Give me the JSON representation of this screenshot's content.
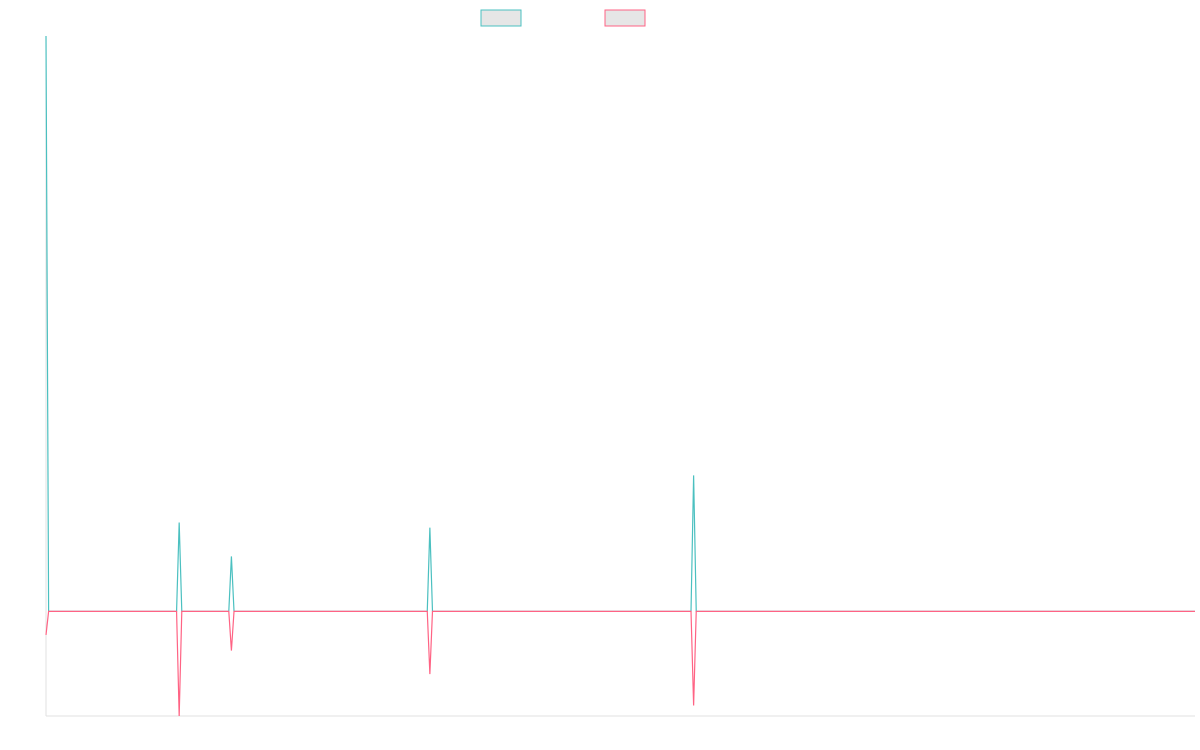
{
  "chart_data": {
    "type": "line",
    "x": [
      0,
      1,
      50,
      51,
      52,
      70,
      71,
      72,
      146,
      147,
      148,
      247,
      248,
      249,
      440
    ],
    "xlim": [
      0,
      440
    ],
    "ylim": [
      -20,
      110
    ],
    "grid": false,
    "legend": "top",
    "series": [
      {
        "color": "#4bc0c0",
        "values": [
          110,
          0,
          0,
          17,
          0,
          0,
          10.5,
          0,
          0,
          16,
          0,
          0,
          26,
          0,
          0
        ]
      },
      {
        "color": "#ff6384",
        "values": [
          -4.5,
          0,
          0,
          -20,
          0,
          0,
          -7.5,
          0,
          0,
          -12,
          0,
          0,
          -18,
          0,
          0
        ]
      }
    ]
  }
}
